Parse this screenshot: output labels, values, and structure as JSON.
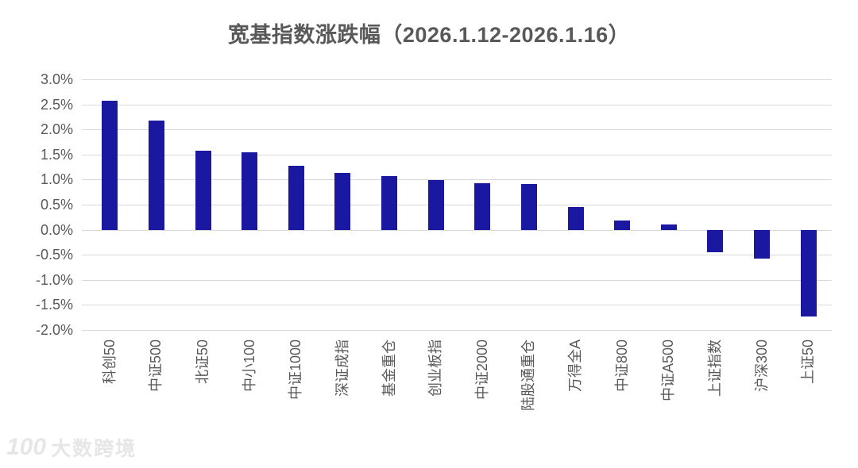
{
  "title": "宽基指数涨跌幅（2026.1.12-2026.1.16）",
  "watermark": {
    "logo": "100",
    "text": "大数跨境"
  },
  "chart_data": {
    "type": "bar",
    "title": "宽基指数涨跌幅（2026.1.12-2026.1.16）",
    "categories": [
      "科创50",
      "中证500",
      "北证50",
      "中小100",
      "中证1000",
      "深证成指",
      "基金重仓",
      "创业板指",
      "中证2000",
      "陆股通重仓",
      "万得全A",
      "中证800",
      "中证A500",
      "上证指数",
      "沪深300",
      "上证50"
    ],
    "values": [
      2.57,
      2.18,
      1.57,
      1.54,
      1.27,
      1.13,
      1.07,
      0.99,
      0.93,
      0.92,
      0.46,
      0.19,
      0.1,
      -0.45,
      -0.58,
      -1.73
    ],
    "unit": "%",
    "ylim": [
      -2.0,
      3.0
    ],
    "ytick_step": 0.5,
    "ytick_labels": [
      "3.0%",
      "2.5%",
      "2.0%",
      "1.5%",
      "1.0%",
      "0.5%",
      "0.0%",
      "-0.5%",
      "-1.0%",
      "-1.5%",
      "-2.0%"
    ],
    "grid": true,
    "legend": "none",
    "xlabel": "",
    "ylabel": "",
    "bar_color": "#1a17a0",
    "gridline_color": "#d9d9d9",
    "axis_label_color": "#595959"
  }
}
